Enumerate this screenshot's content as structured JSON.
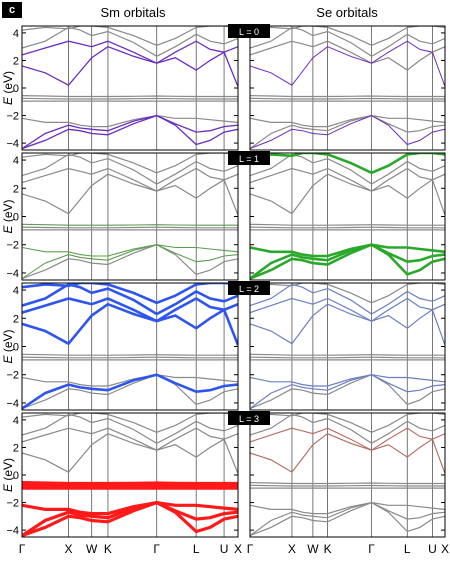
{
  "panel_label": "c",
  "column_titles": [
    "Sm orbitals",
    "Se orbitals"
  ],
  "colors": {
    "gray": "#8a8a8a",
    "L0": "#6a2cc0",
    "L1": "#2aa82a",
    "L1_light": "#5e9e4e",
    "L2": "#2f55f0",
    "L2_light": "#6b7fc4",
    "L3": "#ff1a1a",
    "L3_light": "#b5675e"
  },
  "chart_data": {
    "type": "line",
    "description_of_axes": "band structure",
    "ylabel": "E (eV)",
    "ylim": [
      -4.5,
      4.5
    ],
    "yticks": [
      -4,
      -2,
      0,
      2,
      4
    ],
    "kpath": [
      {
        "label": "Γ",
        "k": 0
      },
      {
        "label": "X",
        "k": 1.0
      },
      {
        "label": "W",
        "k": 1.5
      },
      {
        "label": "K",
        "k": 1.85
      },
      {
        "label": "Γ",
        "k": 2.9
      },
      {
        "label": "L",
        "k": 3.75
      },
      {
        "label": "U",
        "k": 4.35
      },
      {
        "label": "X",
        "k": 4.65
      }
    ],
    "rows": [
      {
        "legend": "L = 0",
        "highlight": {
          "Sm": "L0",
          "Se": "L0"
        }
      },
      {
        "legend": "L = 1",
        "highlight": {
          "Sm": "L1_light",
          "Se": "L1"
        }
      },
      {
        "legend": "L = 2",
        "highlight": {
          "Sm": "L2",
          "Se": "L2_light"
        }
      },
      {
        "legend": "L = 3",
        "highlight": {
          "Sm": "L3",
          "Se": "L3_light"
        }
      }
    ],
    "bands": {
      "k": [
        0,
        0.5,
        1.0,
        1.25,
        1.5,
        1.85,
        2.4,
        2.9,
        3.3,
        3.75,
        4.05,
        4.35,
        4.65
      ],
      "series": [
        {
          "name": "s1",
          "values": [
            -4.4,
            -3.8,
            -3.0,
            -3.1,
            -3.3,
            -3.4,
            -2.6,
            -2.0,
            -2.7,
            -4.1,
            -3.8,
            -3.2,
            -3.0
          ]
        },
        {
          "name": "s2",
          "values": [
            -4.4,
            -3.3,
            -2.7,
            -2.9,
            -3.0,
            -3.1,
            -2.4,
            -2.0,
            -2.6,
            -3.2,
            -3.1,
            -2.8,
            -2.7
          ]
        },
        {
          "name": "s3",
          "values": [
            -2.2,
            -2.5,
            -2.5,
            -2.7,
            -2.8,
            -2.8,
            -2.3,
            -2.0,
            -2.2,
            -2.2,
            -2.3,
            -2.4,
            -2.5
          ]
        },
        {
          "name": "f1",
          "values": [
            -0.55,
            -0.58,
            -0.62,
            -0.62,
            -0.62,
            -0.62,
            -0.6,
            -0.58,
            -0.6,
            -0.62,
            -0.62,
            -0.62,
            -0.62
          ]
        },
        {
          "name": "f2",
          "values": [
            -0.75,
            -0.78,
            -0.8,
            -0.8,
            -0.8,
            -0.8,
            -0.78,
            -0.76,
            -0.78,
            -0.8,
            -0.8,
            -0.8,
            -0.8
          ]
        },
        {
          "name": "f3",
          "values": [
            -0.95,
            -0.95,
            -0.95,
            -0.95,
            -0.95,
            -0.95,
            -0.95,
            -0.95,
            -0.95,
            -0.95,
            -0.95,
            -0.95,
            -0.95
          ]
        },
        {
          "name": "d1",
          "values": [
            1.6,
            1.1,
            0.2,
            1.2,
            2.2,
            3.0,
            2.3,
            1.8,
            2.6,
            3.4,
            2.8,
            2.6,
            0.1
          ]
        },
        {
          "name": "d2",
          "values": [
            2.4,
            2.9,
            3.4,
            3.2,
            3.0,
            3.4,
            2.6,
            1.8,
            2.2,
            1.3,
            2.0,
            2.6,
            3.0
          ]
        },
        {
          "name": "d3",
          "values": [
            2.9,
            3.4,
            4.4,
            4.2,
            3.8,
            4.1,
            3.3,
            2.3,
            3.0,
            3.9,
            3.4,
            3.2,
            3.6
          ]
        },
        {
          "name": "d4",
          "values": [
            4.2,
            4.4,
            4.3,
            4.5,
            4.5,
            4.4,
            3.8,
            3.1,
            3.6,
            4.4,
            4.5,
            4.5,
            4.4
          ]
        }
      ]
    }
  },
  "panels": [
    {
      "row": 0,
      "side": "Sm",
      "hl": "L0",
      "bands": [
        "d1",
        "d2",
        "s1",
        "s2"
      ],
      "width": 1.3
    },
    {
      "row": 0,
      "side": "Se",
      "hl": "L0",
      "bands": [
        "d1",
        "s1"
      ],
      "width": 1.0
    },
    {
      "row": 1,
      "side": "Sm",
      "hl": "L1_light",
      "bands": [
        "s2",
        "s3",
        "f1"
      ],
      "width": 1.1
    },
    {
      "row": 1,
      "side": "Se",
      "hl": "L1",
      "bands": [
        "s1",
        "s2",
        "s3",
        "d4"
      ],
      "width": 2.6
    },
    {
      "row": 2,
      "side": "Sm",
      "hl": "L2",
      "bands": [
        "d1",
        "d2",
        "d3",
        "d4",
        "s2"
      ],
      "width": 2.6
    },
    {
      "row": 2,
      "side": "Se",
      "hl": "L2_light",
      "bands": [
        "d1",
        "d2",
        "d3",
        "s2",
        "s3"
      ],
      "width": 1.2
    },
    {
      "row": 3,
      "side": "Sm",
      "hl": "L3",
      "bands": [
        "f1",
        "f2",
        "f3",
        "s1",
        "s2",
        "s3"
      ],
      "width": 3.2
    },
    {
      "row": 3,
      "side": "Se",
      "hl": "L3_light",
      "bands": [
        "d1",
        "d2"
      ],
      "width": 1.1
    }
  ]
}
